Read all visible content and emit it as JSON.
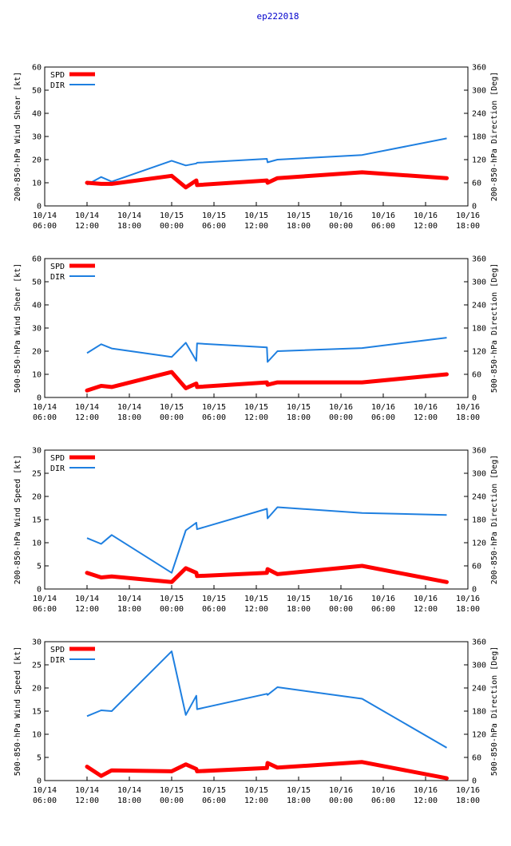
{
  "title": "ep222018",
  "colors": {
    "spd": "#ff0000",
    "dir": "#1e7fe0",
    "axis": "#000000",
    "title": "#0000cc"
  },
  "x_ticks": [
    {
      "t": 6,
      "l1": "10/14",
      "l2": "06:00"
    },
    {
      "t": 12,
      "l1": "10/14",
      "l2": "12:00"
    },
    {
      "t": 18,
      "l1": "10/14",
      "l2": "18:00"
    },
    {
      "t": 24,
      "l1": "10/15",
      "l2": "00:00"
    },
    {
      "t": 30,
      "l1": "10/15",
      "l2": "06:00"
    },
    {
      "t": 36,
      "l1": "10/15",
      "l2": "12:00"
    },
    {
      "t": 42,
      "l1": "10/15",
      "l2": "18:00"
    },
    {
      "t": 48,
      "l1": "10/16",
      "l2": "00:00"
    },
    {
      "t": 54,
      "l1": "10/16",
      "l2": "06:00"
    },
    {
      "t": 60,
      "l1": "10/16",
      "l2": "12:00"
    },
    {
      "t": 66,
      "l1": "10/16",
      "l2": "18:00"
    }
  ],
  "chart_data": [
    {
      "type": "line",
      "ylabel": "200-850-hPa Wind Shear [kt]",
      "y2label": "200-850-hPa Direction [Deg]",
      "xlim": [
        6,
        66
      ],
      "ylim": [
        0,
        60
      ],
      "y2lim": [
        0,
        360
      ],
      "yticks": [
        0,
        10,
        20,
        30,
        40,
        50,
        60
      ],
      "y2ticks": [
        0,
        60,
        120,
        180,
        240,
        300,
        360
      ],
      "legend": [
        "SPD",
        "DIR"
      ],
      "x": [
        12,
        14,
        15.5,
        24,
        26,
        27.5,
        27.6,
        37.5,
        37.6,
        39,
        51,
        63
      ],
      "spd": [
        10,
        9.5,
        9.5,
        13,
        8,
        11,
        9,
        11,
        10,
        12,
        14.5,
        12
      ],
      "dir": [
        55,
        75,
        63,
        117,
        105,
        110,
        112,
        122,
        113,
        120,
        132,
        175
      ]
    },
    {
      "type": "line",
      "ylabel": "500-850-hPa Wind Shear [kt]",
      "y2label": "500-850-hPa Direction [Deg]",
      "xlim": [
        6,
        66
      ],
      "ylim": [
        0,
        60
      ],
      "y2lim": [
        0,
        360
      ],
      "yticks": [
        0,
        10,
        20,
        30,
        40,
        50,
        60
      ],
      "y2ticks": [
        0,
        60,
        120,
        180,
        240,
        300,
        360
      ],
      "legend": [
        "SPD",
        "DIR"
      ],
      "x": [
        12,
        14,
        15.5,
        24,
        26,
        27.5,
        27.6,
        37.5,
        37.6,
        39,
        51,
        63
      ],
      "spd": [
        3,
        5,
        4.5,
        11,
        4,
        6,
        4.5,
        6.5,
        5.5,
        6.5,
        6.5,
        10
      ],
      "dir": [
        115,
        138,
        127,
        105,
        142,
        95,
        140,
        130,
        92,
        120,
        128,
        155
      ]
    },
    {
      "type": "line",
      "ylabel": "200-850-hPa Wind Speed [kt]",
      "y2label": "200-850-hPa Direction [Deg]",
      "xlim": [
        6,
        66
      ],
      "ylim": [
        0,
        30
      ],
      "y2lim": [
        0,
        360
      ],
      "yticks": [
        0,
        5,
        10,
        15,
        20,
        25,
        30
      ],
      "y2ticks": [
        0,
        60,
        120,
        180,
        240,
        300,
        360
      ],
      "legend": [
        "SPD",
        "DIR"
      ],
      "x": [
        12,
        14,
        15.5,
        24,
        26,
        27.5,
        27.6,
        37.5,
        37.6,
        39,
        51,
        63
      ],
      "spd": [
        3.5,
        2.5,
        2.7,
        1.5,
        4.5,
        3.5,
        2.8,
        3.5,
        4.3,
        3.2,
        5,
        1.5
      ],
      "dir": [
        132,
        117,
        140,
        42,
        152,
        172,
        155,
        208,
        183,
        212,
        197,
        192
      ]
    },
    {
      "type": "line",
      "ylabel": "500-850-hPa Wind Speed [kt]",
      "y2label": "500-850-hPa Direction [Deg]",
      "xlim": [
        6,
        66
      ],
      "ylim": [
        0,
        30
      ],
      "y2lim": [
        0,
        360
      ],
      "yticks": [
        0,
        5,
        10,
        15,
        20,
        25,
        30
      ],
      "y2ticks": [
        0,
        60,
        120,
        180,
        240,
        300,
        360
      ],
      "legend": [
        "SPD",
        "DIR"
      ],
      "x": [
        12,
        14,
        15.5,
        24,
        26,
        27.5,
        27.6,
        37.5,
        37.6,
        39,
        51,
        63
      ],
      "spd": [
        3,
        1,
        2.2,
        2,
        3.5,
        2.5,
        2,
        2.7,
        3.8,
        2.8,
        4,
        0.5
      ],
      "dir": [
        167,
        182,
        180,
        335,
        170,
        220,
        185,
        225,
        222,
        242,
        212,
        85
      ]
    }
  ]
}
